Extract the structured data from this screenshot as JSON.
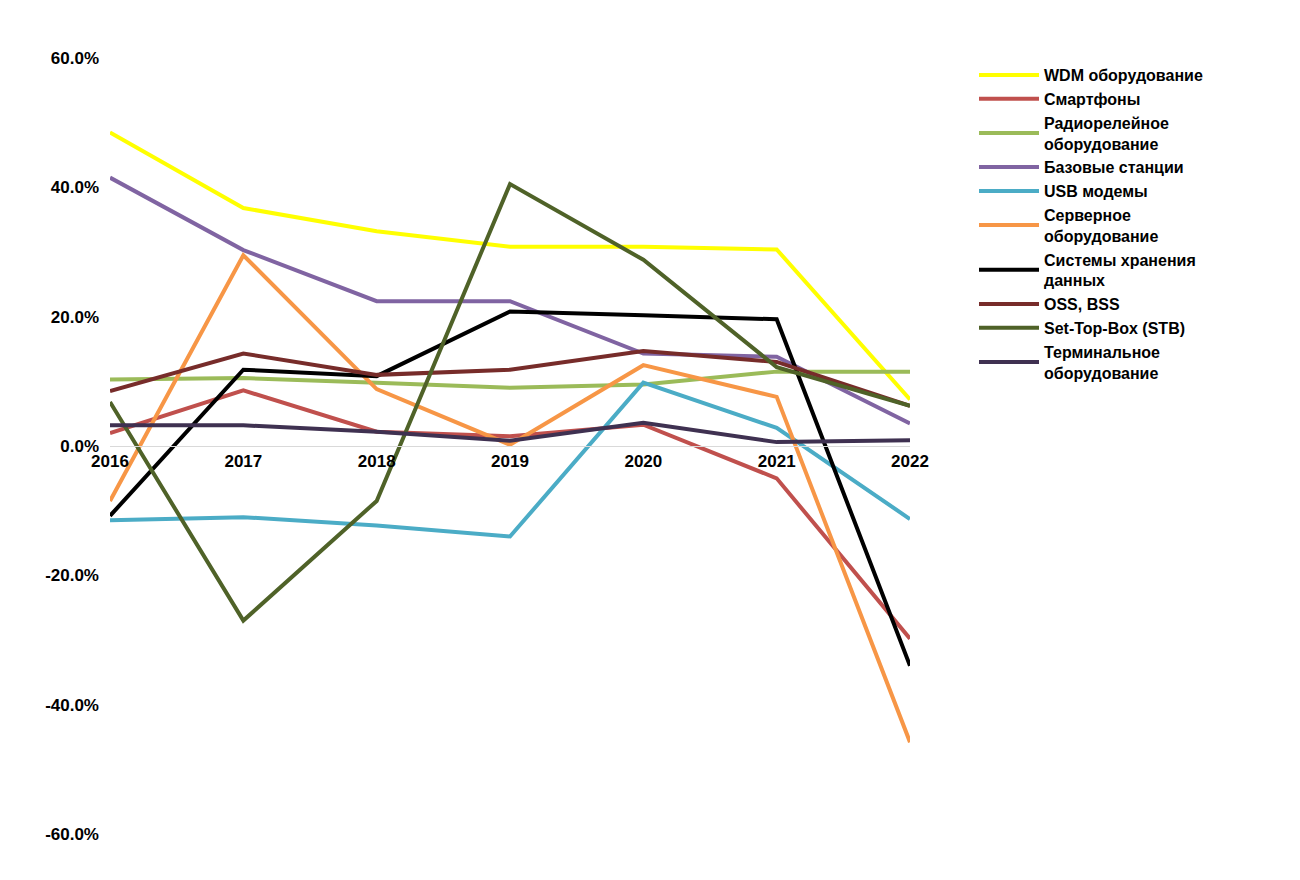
{
  "chart_data": {
    "type": "line",
    "categories": [
      "2016",
      "2017",
      "2018",
      "2019",
      "2020",
      "2021",
      "2022"
    ],
    "series": [
      {
        "name": "WDM оборудование",
        "color": "#FFFF00",
        "values": [
          48.5,
          36.8,
          33.2,
          30.8,
          30.8,
          30.4,
          7.2
        ]
      },
      {
        "name": "Смартфоны",
        "color": "#C0504D",
        "values": [
          2.0,
          8.6,
          2.2,
          1.5,
          3.3,
          -5.0,
          -29.8
        ]
      },
      {
        "name": "Радиорелейное оборудование",
        "color": "#9BBB59",
        "values": [
          10.3,
          10.5,
          9.8,
          9.0,
          9.5,
          11.5,
          11.5
        ]
      },
      {
        "name": "Базовые станции",
        "color": "#8064A2",
        "values": [
          41.5,
          30.3,
          22.4,
          22.4,
          14.3,
          13.8,
          3.5
        ]
      },
      {
        "name": "USB модемы",
        "color": "#4BACC6",
        "values": [
          -11.5,
          -11.0,
          -12.3,
          -14.0,
          9.8,
          2.8,
          -11.3
        ]
      },
      {
        "name": "Серверное оборудование",
        "color": "#F79646",
        "values": [
          -8.5,
          29.5,
          8.8,
          0.2,
          12.5,
          7.6,
          -45.8
        ]
      },
      {
        "name": "Системы хранения данных",
        "color": "#000000",
        "values": [
          -10.8,
          11.8,
          10.8,
          20.8,
          20.2,
          19.6,
          -34.0
        ]
      },
      {
        "name": "OSS, BSS",
        "color": "#772C2A",
        "values": [
          8.5,
          14.3,
          11.0,
          11.8,
          14.7,
          13.0,
          6.2
        ]
      },
      {
        "name": "Set-Top-Box (STB)",
        "color": "#4F6228",
        "values": [
          6.8,
          -27.0,
          -8.5,
          40.5,
          28.8,
          12.2,
          6.2
        ]
      },
      {
        "name": "Терминальное оборудование",
        "color": "#3F3151",
        "values": [
          3.2,
          3.2,
          2.2,
          0.8,
          3.6,
          0.6,
          0.9
        ]
      }
    ],
    "ylim": [
      -60,
      60
    ],
    "yticks": [
      {
        "value": -60,
        "label": "-60.0%"
      },
      {
        "value": -40,
        "label": "-40.0%"
      },
      {
        "value": -20,
        "label": "-20.0%"
      },
      {
        "value": 0,
        "label": "0.0%"
      },
      {
        "value": 20,
        "label": "20.0%"
      },
      {
        "value": 40,
        "label": "40.0%"
      },
      {
        "value": 60,
        "label": "60.0%"
      }
    ],
    "grid": false,
    "legend": "right"
  }
}
